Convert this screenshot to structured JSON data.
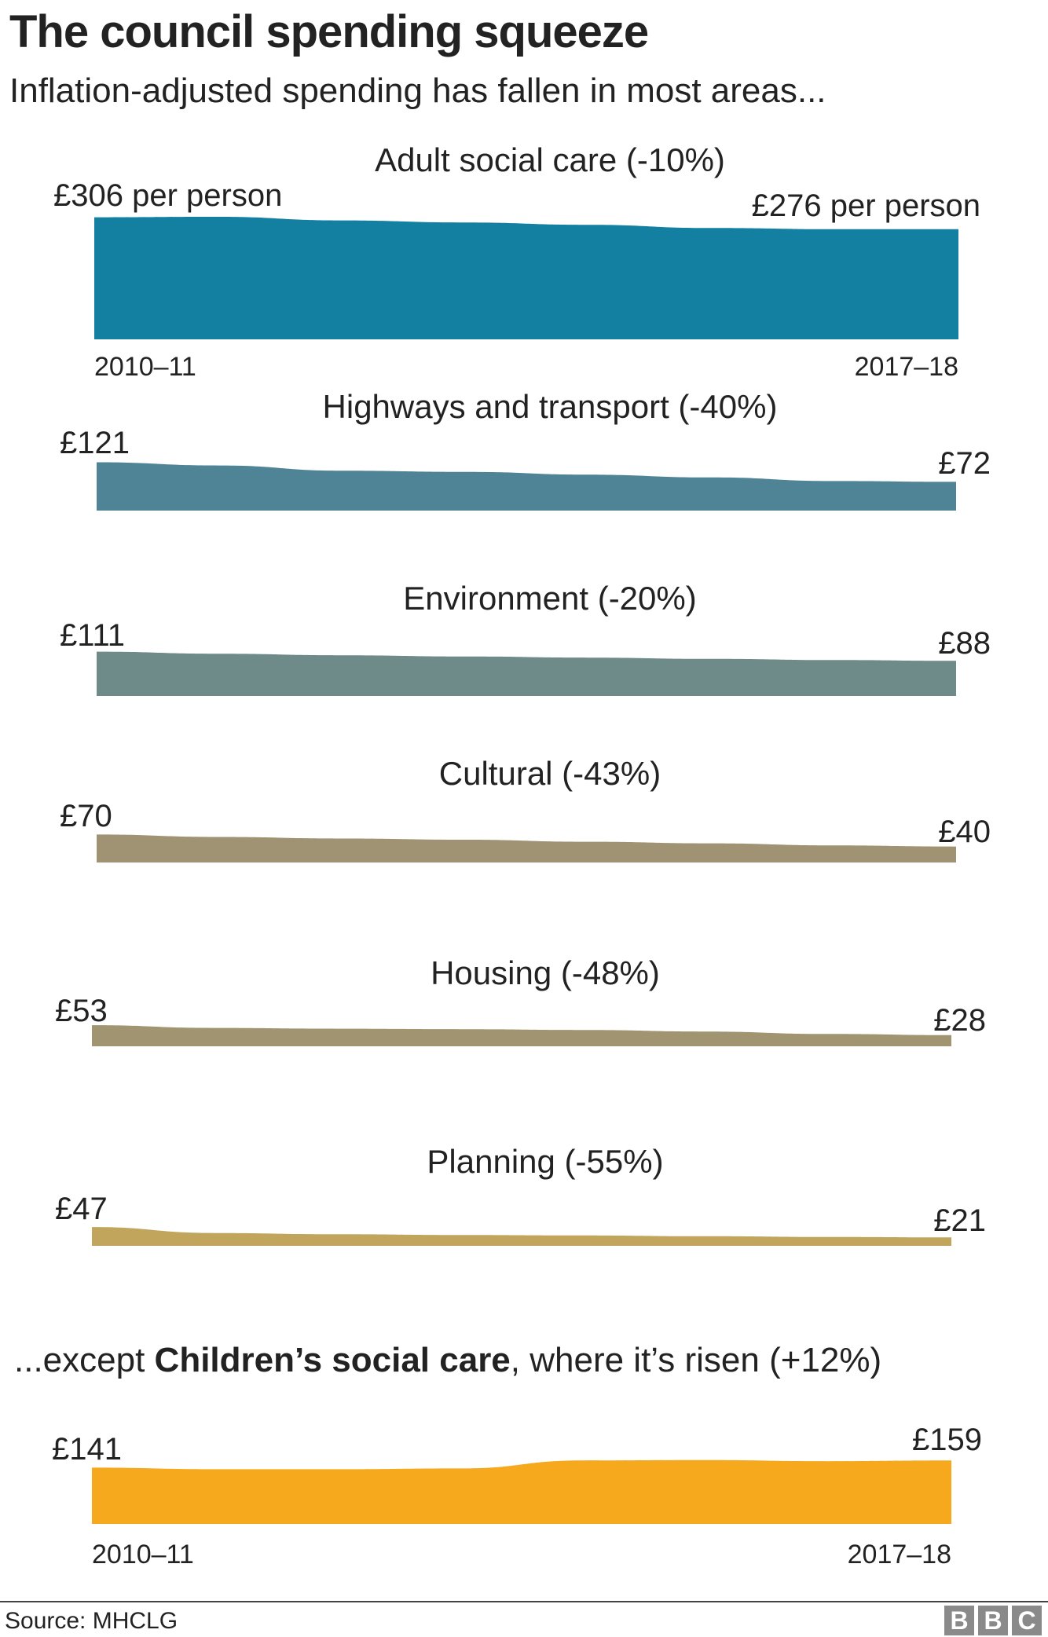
{
  "header": {
    "title": "The council spending squeeze",
    "subtitle": "Inflation-adjusted spending has fallen in most areas..."
  },
  "except_text": {
    "prefix": "...except ",
    "bold": "Children’s social care",
    "suffix": ", where it’s risen (+12%)"
  },
  "footer": {
    "source": "Source: MHCLG",
    "logo": [
      "B",
      "B",
      "C"
    ]
  },
  "chart_data": {
    "type": "area",
    "x": [
      "2010–11",
      "2011–12",
      "2012–13",
      "2013–14",
      "2014–15",
      "2015–16",
      "2016–17",
      "2017–18"
    ],
    "x_labels_shown": [
      "2010–11",
      "2017–18"
    ],
    "y_unit": "£ per person",
    "series": [
      {
        "name": "Adult social care (-10%)",
        "color": "#1380A1",
        "values": [
          306,
          307,
          298,
          293,
          287,
          279,
          276,
          276
        ],
        "start_label": "£306 per person",
        "end_label": "£276 per person",
        "show_years": true
      },
      {
        "name": "Highways and transport (-40%)",
        "color": "#4F8396",
        "values": [
          121,
          113,
          100,
          97,
          90,
          83,
          74,
          72
        ],
        "start_label": "£121",
        "end_label": "£72",
        "show_years": false
      },
      {
        "name": "Environment (-20%)",
        "color": "#6E8A89",
        "values": [
          111,
          106,
          102,
          99,
          96,
          93,
          90,
          88
        ],
        "start_label": "£111",
        "end_label": "£88",
        "show_years": false
      },
      {
        "name": "Cultural (-43%)",
        "color": "#A09373",
        "values": [
          70,
          64,
          60,
          57,
          52,
          48,
          43,
          40
        ],
        "start_label": "£70",
        "end_label": "£40",
        "show_years": false
      },
      {
        "name": "Housing (-48%)",
        "color": "#A19471",
        "values": [
          53,
          46,
          44,
          43,
          41,
          37,
          31,
          28
        ],
        "start_label": "£53",
        "end_label": "£28",
        "show_years": false
      },
      {
        "name": "Planning (-55%)",
        "color": "#C1A55C",
        "values": [
          47,
          32,
          29,
          27,
          26,
          24,
          22,
          21
        ],
        "start_label": "£47",
        "end_label": "£21",
        "show_years": false
      },
      {
        "name": "Children’s social care (+12%)",
        "color": "#F6A91D",
        "values": [
          141,
          137,
          137,
          139,
          159,
          160,
          157,
          159
        ],
        "start_label": "£141",
        "end_label": "£159",
        "show_years": true
      }
    ]
  }
}
